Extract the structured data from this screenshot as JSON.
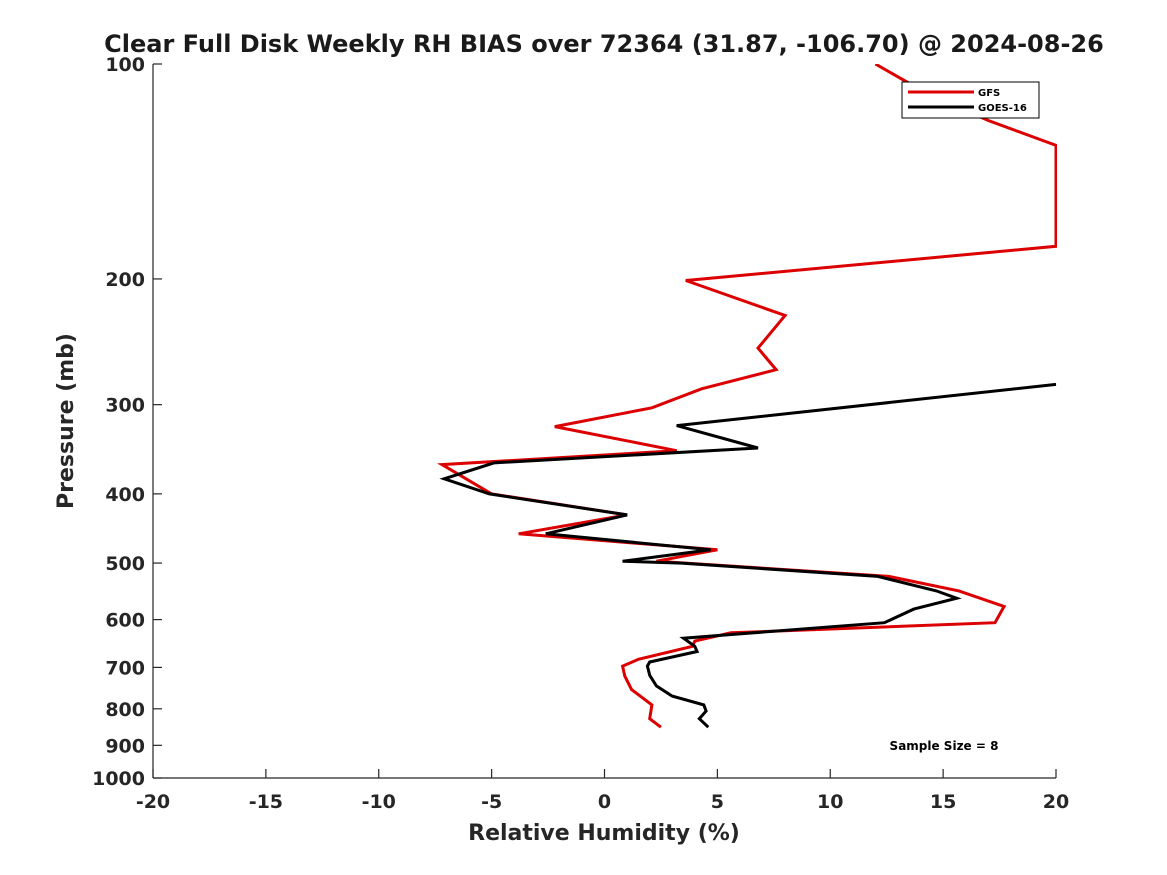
{
  "chart_data": {
    "type": "line",
    "title": "Clear Full Disk Weekly RH BIAS over 72364 (31.87, -106.70) @ 2024-08-26",
    "xlabel": "Relative Humidity (%)",
    "ylabel": "Pressure (mb)",
    "xlim": [
      -20,
      20
    ],
    "ylim": [
      100,
      1000
    ],
    "yscale": "log",
    "yinverted": true,
    "xticks": [
      "-20",
      "-15",
      "-10",
      "-5",
      "0",
      "5",
      "10",
      "15",
      "20"
    ],
    "yticks": [
      "100",
      "200",
      "300",
      "400",
      "500",
      "600",
      "700",
      "800",
      "900",
      "1000"
    ],
    "grid": false,
    "legend_position": "top-right",
    "annotation": "Sample Size = 8",
    "series": [
      {
        "name": "GFS",
        "color": "#dd0000",
        "points": [
          [
            12,
            100
          ],
          [
            14.3,
            110
          ],
          [
            17,
            120
          ],
          [
            20,
            130
          ],
          [
            20,
            180
          ],
          [
            3.6,
            201
          ],
          [
            8,
            225
          ],
          [
            6.8,
            250
          ],
          [
            7.6,
            268
          ],
          [
            4.3,
            285
          ],
          [
            2.1,
            303
          ],
          [
            -2.2,
            322
          ],
          [
            3.2,
            348
          ],
          [
            -7.2,
            364
          ],
          [
            -5,
            400
          ],
          [
            1,
            428
          ],
          [
            -3.8,
            455
          ],
          [
            5,
            479
          ],
          [
            2.3,
            497
          ],
          [
            3.6,
            500
          ],
          [
            12.6,
            522
          ],
          [
            15.7,
            547
          ],
          [
            17.7,
            575
          ],
          [
            17.3,
            606
          ],
          [
            5.6,
            626
          ],
          [
            4,
            643
          ],
          [
            3.9,
            654
          ],
          [
            1.5,
            682
          ],
          [
            0.8,
            697
          ],
          [
            0.9,
            720
          ],
          [
            1.2,
            752
          ],
          [
            2.1,
            790
          ],
          [
            2,
            826
          ],
          [
            2.5,
            849
          ]
        ]
      },
      {
        "name": "GOES-16",
        "color": "#000000",
        "points": [
          [
            20,
            281
          ],
          [
            3.2,
            321
          ],
          [
            6.8,
            345
          ],
          [
            -4.9,
            362
          ],
          [
            -7.1,
            381
          ],
          [
            -5.1,
            400
          ],
          [
            1,
            428
          ],
          [
            -2.6,
            455
          ],
          [
            4.7,
            479
          ],
          [
            0.8,
            497
          ],
          [
            3.4,
            500
          ],
          [
            12.1,
            522
          ],
          [
            14.7,
            547
          ],
          [
            15.6,
            560
          ],
          [
            13.7,
            580
          ],
          [
            12.4,
            606
          ],
          [
            3.5,
            637
          ],
          [
            4,
            654
          ],
          [
            4.1,
            665
          ],
          [
            2,
            688
          ],
          [
            1.9,
            697
          ],
          [
            2,
            718
          ],
          [
            2.3,
            743
          ],
          [
            3,
            768
          ],
          [
            4.4,
            790
          ],
          [
            4.5,
            806
          ],
          [
            4.2,
            826
          ],
          [
            4.6,
            849
          ]
        ]
      }
    ]
  }
}
